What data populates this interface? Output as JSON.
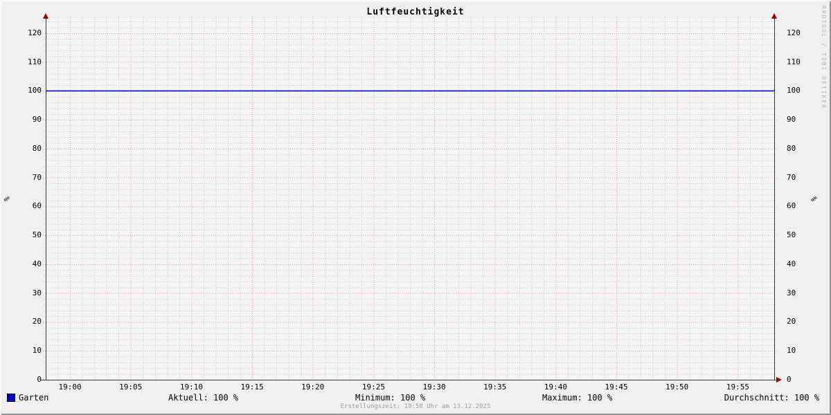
{
  "title": "Luftfeuchtigkeit",
  "watermark": "RRDTOOL / TOBI OETIKER",
  "axis": {
    "left_unit": "%",
    "right_unit": "%"
  },
  "legend": {
    "series_label": "Garten",
    "square_color": "#0000cc"
  },
  "stats": {
    "aktuell": "Aktuell: 100 %",
    "minimum": "Minimum: 100 %",
    "maximum": "Maximum: 100 %",
    "durchschnitt": "Durchschnitt: 100 %"
  },
  "footer": "Erstellungszeit: 19:58 Uhr am 13.12.2025",
  "chart_data": {
    "type": "line",
    "title": "Luftfeuchtigkeit",
    "xlabel": "",
    "ylabel": "%",
    "x_start": "18:58",
    "x_end": "19:58",
    "x_ticks": [
      "19:00",
      "19:05",
      "19:10",
      "19:15",
      "19:20",
      "19:25",
      "19:30",
      "19:35",
      "19:40",
      "19:45",
      "19:50",
      "19:55"
    ],
    "y_ticks": [
      0,
      10,
      20,
      30,
      40,
      50,
      60,
      70,
      80,
      90,
      100,
      110,
      120
    ],
    "ylim": [
      0,
      125
    ],
    "grid": {
      "x_major_minutes": 5,
      "x_minor_minutes": 1,
      "y_major": 10,
      "y_minor": 2,
      "grid_on": true
    },
    "legend_position": "bottom-left",
    "series": [
      {
        "name": "Garten",
        "color": "#0000c4",
        "x": [
          "19:00",
          "19:05",
          "19:10",
          "19:15",
          "19:20",
          "19:25",
          "19:30",
          "19:35",
          "19:40",
          "19:45",
          "19:50",
          "19:55"
        ],
        "values": [
          100,
          100,
          100,
          100,
          100,
          100,
          100,
          100,
          100,
          100,
          100,
          100
        ],
        "aktuell": 100,
        "minimum": 100,
        "maximum": 100,
        "durchschnitt": 100
      }
    ],
    "colors": {
      "background": "#f0f0f0",
      "canvas": "#f5f5f5",
      "major_grid": "#f0a0a0",
      "minor_grid": "#cccccc",
      "axis": "#333333",
      "arrow": "#9b0000"
    }
  }
}
